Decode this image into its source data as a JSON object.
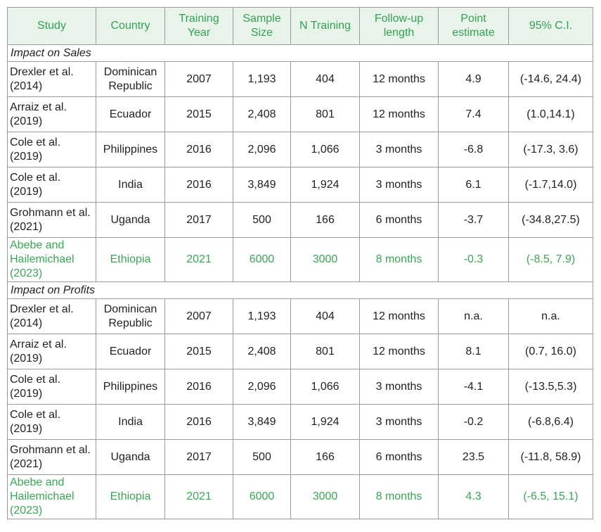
{
  "table": {
    "header": [
      "Study",
      "Country",
      "Training Year",
      "Sample Size",
      "N Training",
      "Follow-up length",
      "Point estimate",
      "95% C.I."
    ],
    "sections": [
      {
        "title": "Impact on Sales",
        "rows": [
          [
            "Drexler et al. (2014)",
            "Dominican Republic",
            "2007",
            "1,193",
            "404",
            "12 months",
            "4.9",
            "(-14.6, 24.4)"
          ],
          [
            "Arraiz et al. (2019)",
            "Ecuador",
            "2015",
            "2,408",
            "801",
            "12 months",
            "7.4",
            "(1.0,14.1)"
          ],
          [
            "Cole et al. (2019)",
            "Philippines",
            "2016",
            "2,096",
            "1,066",
            "3 months",
            "-6.8",
            "(-17.3, 3.6)"
          ],
          [
            "Cole et al. (2019)",
            "India",
            "2016",
            "3,849",
            "1,924",
            "3 months",
            "6.1",
            "(-1.7,14.0)"
          ],
          [
            "Grohmann et al. (2021)",
            "Uganda",
            "2017",
            "500",
            "166",
            "6 months",
            "-3.7",
            "(-34.8,27.5)"
          ],
          [
            "Abebe and Hailemichael (2023)",
            "Ethiopia",
            "2021",
            "6000",
            "3000",
            "8 months",
            "-0.3",
            "(-8.5, 7.9)"
          ]
        ]
      },
      {
        "title": "Impact on Profits",
        "rows": [
          [
            "Drexler et al. (2014)",
            "Dominican Republic",
            "2007",
            "1,193",
            "404",
            "12 months",
            "n.a.",
            "n.a."
          ],
          [
            "Arraiz et al. (2019)",
            "Ecuador",
            "2015",
            "2,408",
            "801",
            "12 months",
            "8.1",
            "(0.7, 16.0)"
          ],
          [
            "Cole et al. (2019)",
            "Philippines",
            "2016",
            "2,096",
            "1,066",
            "3 months",
            "-4.1",
            "(-13.5,5.3)"
          ],
          [
            "Cole et al. (2019)",
            "India",
            "2016",
            "3,849",
            "1,924",
            "3 months",
            "-0.2",
            "(-6.8,6.4)"
          ],
          [
            "Grohmann et al. (2021)",
            "Uganda",
            "2017",
            "500",
            "166",
            "6 months",
            "23.5",
            "(-11.8, 58.9)"
          ],
          [
            "Abebe and Hailemichael (2023)",
            "Ethiopia",
            "2021",
            "6000",
            "3000",
            "8 months",
            "4.3",
            "(-6.5, 15.1)"
          ]
        ]
      }
    ]
  }
}
